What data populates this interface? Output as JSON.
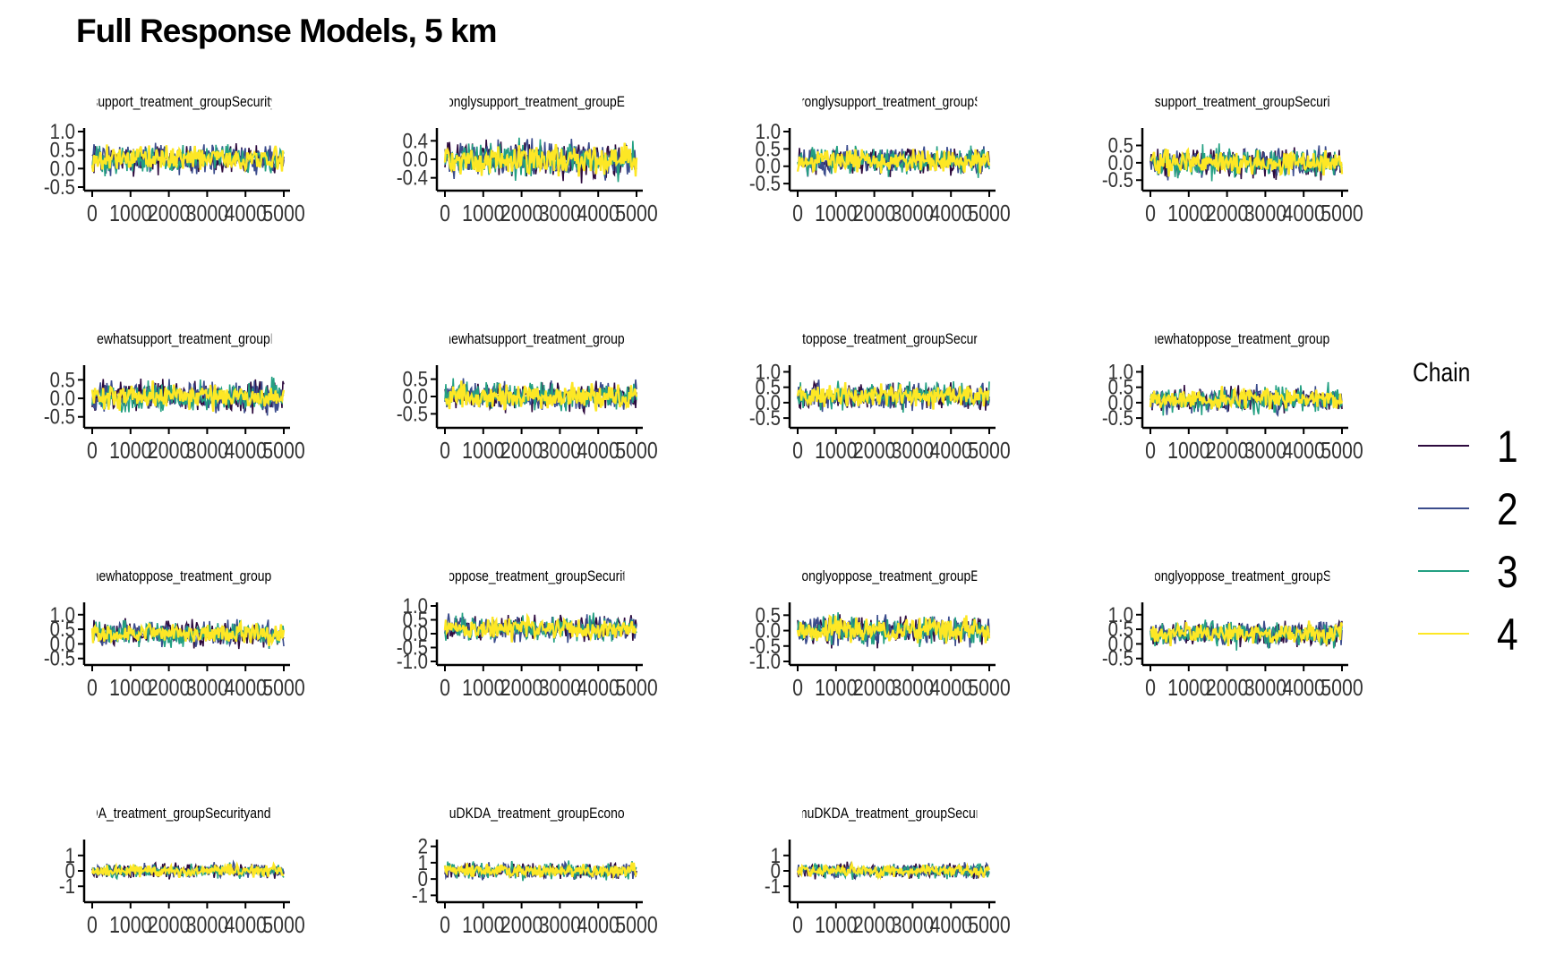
{
  "title": "Full Response Models, 5 km",
  "legend": {
    "title": "Chain",
    "items": [
      {
        "label": "1",
        "color": "#2d0a3e"
      },
      {
        "label": "2",
        "color": "#3b4c8c"
      },
      {
        "label": "3",
        "color": "#23a082"
      },
      {
        "label": "4",
        "color": "#fde725"
      }
    ]
  },
  "chart_data": [
    {
      "type": "line",
      "title": "support_treatment_groupSecurity",
      "x": [
        0,
        5000
      ],
      "xticks": [
        "0",
        "1000",
        "2000",
        "3000",
        "4000",
        "5000"
      ],
      "ylim": [
        -0.5,
        1.0
      ],
      "yticks": [
        "-0.5",
        "0.0",
        "0.5",
        "1.0"
      ],
      "center": 0.25,
      "spread": 0.55,
      "series": [
        {
          "name": "1",
          "color": "#2d0a3e"
        },
        {
          "name": "2",
          "color": "#3b4c8c"
        },
        {
          "name": "3",
          "color": "#23a082"
        },
        {
          "name": "4",
          "color": "#fde725"
        }
      ]
    },
    {
      "type": "line",
      "title": "ronglysupport_treatment_groupEc",
      "x": [
        0,
        5000
      ],
      "xticks": [
        "0",
        "1000",
        "2000",
        "3000",
        "4000",
        "5000"
      ],
      "ylim": [
        -0.6,
        0.6
      ],
      "yticks": [
        "-0.4",
        "0.0",
        "0.4"
      ],
      "center": 0.0,
      "spread": 0.55,
      "series": [
        {
          "name": "1",
          "color": "#2d0a3e"
        },
        {
          "name": "2",
          "color": "#3b4c8c"
        },
        {
          "name": "3",
          "color": "#23a082"
        },
        {
          "name": "4",
          "color": "#fde725"
        }
      ]
    },
    {
      "type": "line",
      "title": "tronglysupport_treatment_groupS",
      "x": [
        0,
        5000
      ],
      "xticks": [
        "0",
        "1000",
        "2000",
        "3000",
        "4000",
        "5000"
      ],
      "ylim": [
        -0.6,
        1.0
      ],
      "yticks": [
        "-0.5",
        "0.0",
        "0.5",
        "1.0"
      ],
      "center": 0.15,
      "spread": 0.55,
      "series": [
        {
          "name": "1",
          "color": "#2d0a3e"
        },
        {
          "name": "2",
          "color": "#3b4c8c"
        },
        {
          "name": "3",
          "color": "#23a082"
        },
        {
          "name": "4",
          "color": "#fde725"
        }
      ]
    },
    {
      "type": "line",
      "title": "tsupport_treatment_groupSecurit",
      "x": [
        0,
        5000
      ],
      "xticks": [
        "0",
        "1000",
        "2000",
        "3000",
        "4000",
        "5000"
      ],
      "ylim": [
        -0.7,
        0.9
      ],
      "yticks": [
        "-0.5",
        "0.0",
        "0.5"
      ],
      "center": 0.0,
      "spread": 0.6,
      "series": [
        {
          "name": "1",
          "color": "#2d0a3e"
        },
        {
          "name": "2",
          "color": "#3b4c8c"
        },
        {
          "name": "3",
          "color": "#23a082"
        },
        {
          "name": "4",
          "color": "#fde725"
        }
      ]
    },
    {
      "type": "line",
      "title": "newhatsupport_treatment_groupE",
      "x": [
        0,
        5000
      ],
      "xticks": [
        "0",
        "1000",
        "2000",
        "3000",
        "4000",
        "5000"
      ],
      "ylim": [
        -0.7,
        0.8
      ],
      "yticks": [
        "-0.5",
        "0.0",
        "0.5"
      ],
      "center": 0.05,
      "spread": 0.6,
      "series": [
        {
          "name": "1",
          "color": "#2d0a3e"
        },
        {
          "name": "2",
          "color": "#3b4c8c"
        },
        {
          "name": "3",
          "color": "#23a082"
        },
        {
          "name": "4",
          "color": "#fde725"
        }
      ]
    },
    {
      "type": "line",
      "title": "mewhatsupport_treatment_groupS",
      "x": [
        0,
        5000
      ],
      "xticks": [
        "0",
        "1000",
        "2000",
        "3000",
        "4000",
        "5000"
      ],
      "ylim": [
        -0.8,
        0.8
      ],
      "yticks": [
        "-0.5",
        "0.0",
        "0.5"
      ],
      "center": 0.0,
      "spread": 0.6,
      "series": [
        {
          "name": "1",
          "color": "#2d0a3e"
        },
        {
          "name": "2",
          "color": "#3b4c8c"
        },
        {
          "name": "3",
          "color": "#23a082"
        },
        {
          "name": "4",
          "color": "#fde725"
        }
      ]
    },
    {
      "type": "line",
      "title": "atoppose_treatment_groupSecurit",
      "x": [
        0,
        5000
      ],
      "xticks": [
        "0",
        "1000",
        "2000",
        "3000",
        "4000",
        "5000"
      ],
      "ylim": [
        -0.7,
        1.1
      ],
      "yticks": [
        "-0.5",
        "0.0",
        "0.5",
        "1.0"
      ],
      "center": 0.2,
      "spread": 0.6,
      "series": [
        {
          "name": "1",
          "color": "#2d0a3e"
        },
        {
          "name": "2",
          "color": "#3b4c8c"
        },
        {
          "name": "3",
          "color": "#23a082"
        },
        {
          "name": "4",
          "color": "#fde725"
        }
      ]
    },
    {
      "type": "line",
      "title": "mewhatoppose_treatment_groupE",
      "x": [
        0,
        5000
      ],
      "xticks": [
        "0",
        "1000",
        "2000",
        "3000",
        "4000",
        "5000"
      ],
      "ylim": [
        -0.7,
        1.1
      ],
      "yticks": [
        "-0.5",
        "0.0",
        "0.5",
        "1.0"
      ],
      "center": 0.1,
      "spread": 0.6,
      "series": [
        {
          "name": "1",
          "color": "#2d0a3e"
        },
        {
          "name": "2",
          "color": "#3b4c8c"
        },
        {
          "name": "3",
          "color": "#23a082"
        },
        {
          "name": "4",
          "color": "#fde725"
        }
      ]
    },
    {
      "type": "line",
      "title": "mewhatoppose_treatment_groupS",
      "x": [
        0,
        5000
      ],
      "xticks": [
        "0",
        "1000",
        "2000",
        "3000",
        "4000",
        "5000"
      ],
      "ylim": [
        -0.6,
        1.3
      ],
      "yticks": [
        "-0.5",
        "0.0",
        "0.5",
        "1.0"
      ],
      "center": 0.35,
      "spread": 0.6,
      "series": [
        {
          "name": "1",
          "color": "#2d0a3e"
        },
        {
          "name": "2",
          "color": "#3b4c8c"
        },
        {
          "name": "3",
          "color": "#23a082"
        },
        {
          "name": "4",
          "color": "#fde725"
        }
      ]
    },
    {
      "type": "line",
      "title": "yoppose_treatment_groupSecurity",
      "x": [
        0,
        5000
      ],
      "xticks": [
        "0",
        "1000",
        "2000",
        "3000",
        "4000",
        "5000"
      ],
      "ylim": [
        -1.0,
        1.0
      ],
      "yticks": [
        "-1.0",
        "-0.5",
        "0.0",
        "0.5",
        "1.0"
      ],
      "center": 0.2,
      "spread": 0.65,
      "series": [
        {
          "name": "1",
          "color": "#2d0a3e"
        },
        {
          "name": "2",
          "color": "#3b4c8c"
        },
        {
          "name": "3",
          "color": "#23a082"
        },
        {
          "name": "4",
          "color": "#fde725"
        }
      ]
    },
    {
      "type": "line",
      "title": "tronglyoppose_treatment_groupEc",
      "x": [
        0,
        5000
      ],
      "xticks": [
        "0",
        "1000",
        "2000",
        "3000",
        "4000",
        "5000"
      ],
      "ylim": [
        -1.0,
        0.8
      ],
      "yticks": [
        "-1.0",
        "-0.5",
        "0.0",
        "0.5"
      ],
      "center": 0.0,
      "spread": 0.65,
      "series": [
        {
          "name": "1",
          "color": "#2d0a3e"
        },
        {
          "name": "2",
          "color": "#3b4c8c"
        },
        {
          "name": "3",
          "color": "#23a082"
        },
        {
          "name": "4",
          "color": "#fde725"
        }
      ]
    },
    {
      "type": "line",
      "title": "tronglyoppose_treatment_groupSe",
      "x": [
        0,
        5000
      ],
      "xticks": [
        "0",
        "1000",
        "2000",
        "3000",
        "4000",
        "5000"
      ],
      "ylim": [
        -0.6,
        1.3
      ],
      "yticks": [
        "-0.5",
        "0.0",
        "0.5",
        "1.0"
      ],
      "center": 0.35,
      "spread": 0.6,
      "series": [
        {
          "name": "1",
          "color": "#2d0a3e"
        },
        {
          "name": "2",
          "color": "#3b4c8c"
        },
        {
          "name": "3",
          "color": "#23a082"
        },
        {
          "name": "4",
          "color": "#fde725"
        }
      ]
    },
    {
      "type": "line",
      "title": "DA_treatment_groupSecurityandE",
      "x": [
        0,
        5000
      ],
      "xticks": [
        "0",
        "1000",
        "2000",
        "3000",
        "4000",
        "5000"
      ],
      "ylim": [
        -1.8,
        1.8
      ],
      "yticks": [
        "-1",
        "0",
        "1"
      ],
      "center": 0.0,
      "spread": 0.65,
      "series": [
        {
          "name": "1",
          "color": "#2d0a3e"
        },
        {
          "name": "2",
          "color": "#3b4c8c"
        },
        {
          "name": "3",
          "color": "#23a082"
        },
        {
          "name": "4",
          "color": "#fde725"
        }
      ]
    },
    {
      "type": "line",
      "title": "muDKDA_treatment_groupEconom",
      "x": [
        0,
        5000
      ],
      "xticks": [
        "0",
        "1000",
        "2000",
        "3000",
        "4000",
        "5000"
      ],
      "ylim": [
        -1.2,
        2.2
      ],
      "yticks": [
        "-1",
        "0",
        "1",
        "2"
      ],
      "center": 0.5,
      "spread": 0.7,
      "series": [
        {
          "name": "1",
          "color": "#2d0a3e"
        },
        {
          "name": "2",
          "color": "#3b4c8c"
        },
        {
          "name": "3",
          "color": "#23a082"
        },
        {
          "name": "4",
          "color": "#fde725"
        }
      ]
    },
    {
      "type": "line",
      "title": "muDKDA_treatment_groupSecuri",
      "x": [
        0,
        5000
      ],
      "xticks": [
        "0",
        "1000",
        "2000",
        "3000",
        "4000",
        "5000"
      ],
      "ylim": [
        -1.8,
        1.8
      ],
      "yticks": [
        "-1",
        "0",
        "1"
      ],
      "center": 0.0,
      "spread": 0.65,
      "series": [
        {
          "name": "1",
          "color": "#2d0a3e"
        },
        {
          "name": "2",
          "color": "#3b4c8c"
        },
        {
          "name": "3",
          "color": "#23a082"
        },
        {
          "name": "4",
          "color": "#fde725"
        }
      ]
    }
  ]
}
